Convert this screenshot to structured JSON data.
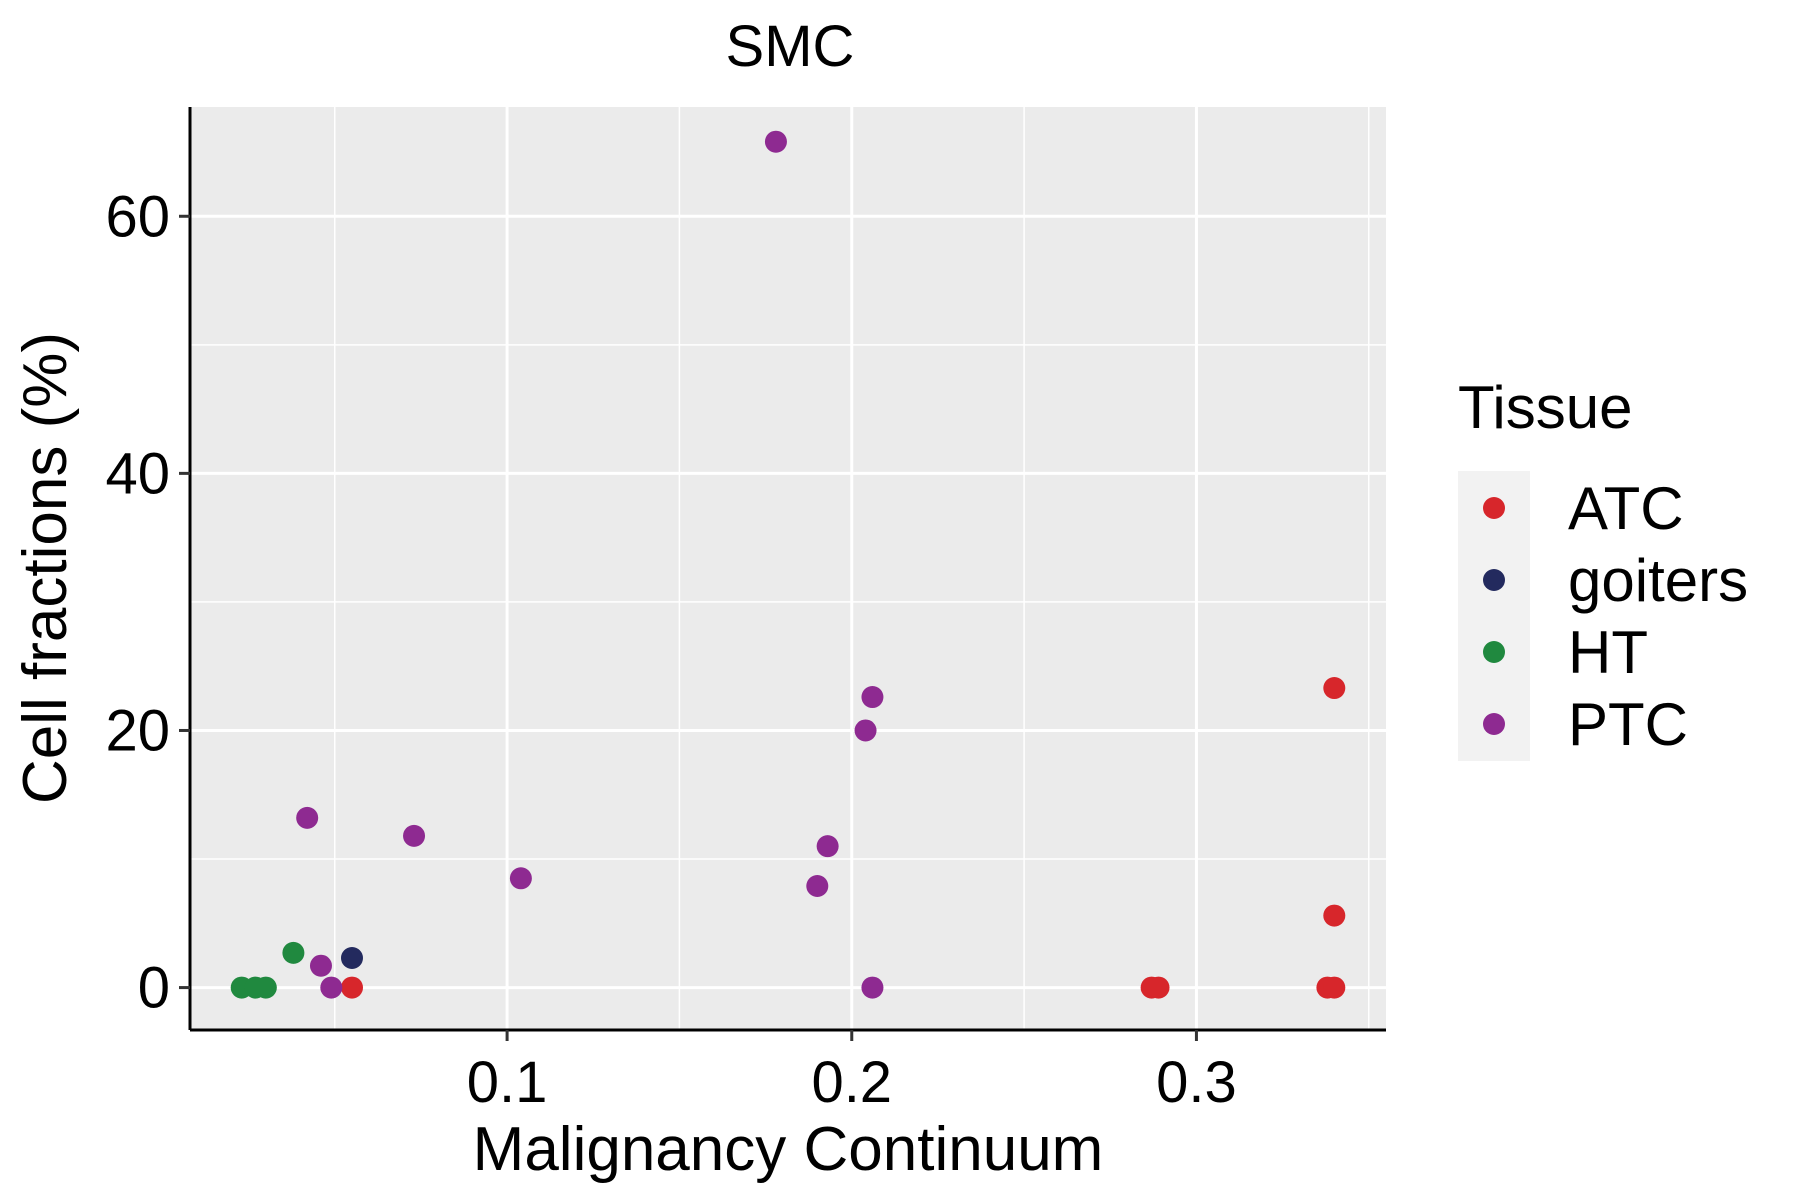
{
  "chart_data": {
    "type": "scatter",
    "title": "SMC",
    "xlabel": "Malignancy Continuum",
    "ylabel": "Cell fractions (%)",
    "xlim": [
      0.008,
      0.355
    ],
    "ylim": [
      -3.3,
      68.5
    ],
    "xticks": [
      0.1,
      0.2,
      0.3
    ],
    "xtick_labels": [
      "0.1",
      "0.2",
      "0.3"
    ],
    "xminor": [
      0.05,
      0.15,
      0.25,
      0.35
    ],
    "yticks": [
      0,
      20,
      40,
      60
    ],
    "ytick_labels": [
      "0",
      "20",
      "40",
      "60"
    ],
    "yminor": [
      10,
      30,
      50
    ],
    "grid": true,
    "legend": {
      "title": "Tissue",
      "position": "right"
    },
    "series": [
      {
        "name": "ATC",
        "color": "#d7262b",
        "points": [
          {
            "x": 0.055,
            "y": 0
          },
          {
            "x": 0.287,
            "y": 0
          },
          {
            "x": 0.289,
            "y": 0
          },
          {
            "x": 0.338,
            "y": 0
          },
          {
            "x": 0.34,
            "y": 0
          },
          {
            "x": 0.34,
            "y": 5.6
          },
          {
            "x": 0.34,
            "y": 23.3
          }
        ]
      },
      {
        "name": "goiters",
        "color": "#232a5e",
        "points": [
          {
            "x": 0.055,
            "y": 2.3
          }
        ]
      },
      {
        "name": "HT",
        "color": "#20893f",
        "points": [
          {
            "x": 0.023,
            "y": 0
          },
          {
            "x": 0.027,
            "y": 0
          },
          {
            "x": 0.03,
            "y": 0
          },
          {
            "x": 0.038,
            "y": 2.7
          }
        ]
      },
      {
        "name": "PTC",
        "color": "#8e2a91",
        "points": [
          {
            "x": 0.042,
            "y": 13.2
          },
          {
            "x": 0.046,
            "y": 1.7
          },
          {
            "x": 0.049,
            "y": 0
          },
          {
            "x": 0.073,
            "y": 11.8
          },
          {
            "x": 0.104,
            "y": 8.5
          },
          {
            "x": 0.178,
            "y": 65.8
          },
          {
            "x": 0.19,
            "y": 7.9
          },
          {
            "x": 0.193,
            "y": 11.0
          },
          {
            "x": 0.204,
            "y": 20.0
          },
          {
            "x": 0.206,
            "y": 22.6
          },
          {
            "x": 0.206,
            "y": 0
          }
        ]
      }
    ]
  }
}
